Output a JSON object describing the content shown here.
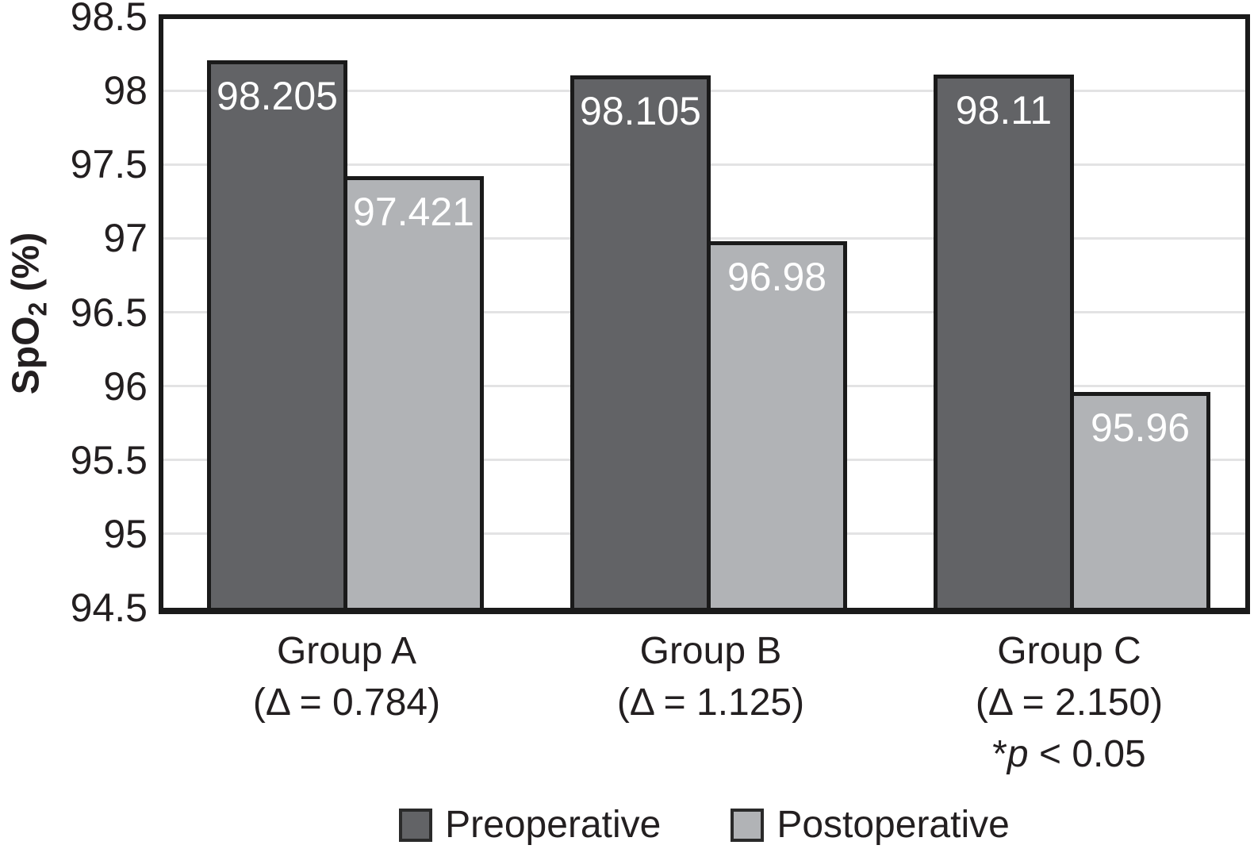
{
  "chart_data": {
    "type": "bar",
    "title": "",
    "ylabel": {
      "main": "SpO",
      "sub": "2",
      "rest": " (%)"
    },
    "ylim": [
      94.5,
      98.5
    ],
    "ytick_step": 0.5,
    "yticks": [
      {
        "value": 98.5,
        "label": "98.5"
      },
      {
        "value": 98,
        "label": "98"
      },
      {
        "value": 97.5,
        "label": "97.5"
      },
      {
        "value": 97,
        "label": "97"
      },
      {
        "value": 96.5,
        "label": "96.5"
      },
      {
        "value": 96,
        "label": "96"
      },
      {
        "value": 95.5,
        "label": "95.5"
      },
      {
        "value": 95,
        "label": "95"
      },
      {
        "value": 94.5,
        "label": "94.5"
      }
    ],
    "grid": true,
    "legend_position": "bottom",
    "categories": [
      {
        "title": "Group A",
        "delta": "(Δ = 0.784)",
        "significance": null
      },
      {
        "title": "Group B",
        "delta": "(Δ = 1.125)",
        "significance": null
      },
      {
        "title": "Group C",
        "delta": "(Δ = 2.150)",
        "significance": {
          "star": "*",
          "p": "p",
          "rest": " < 0.05"
        }
      }
    ],
    "series": [
      {
        "name": "Preoperative",
        "color": "#626366",
        "values": [
          98.205,
          98.105,
          98.11
        ],
        "value_labels": [
          "98.205",
          "98.105",
          "98.11"
        ]
      },
      {
        "name": "Postoperative",
        "color": "#b1b3b6",
        "values": [
          97.421,
          96.98,
          95.96
        ],
        "value_labels": [
          "97.421",
          "96.98",
          "95.96"
        ]
      }
    ],
    "colors": {
      "text": "#231f20",
      "grid": "#e3e3e4",
      "bar_border": "#1a1a1a",
      "background": "#ffffff"
    }
  }
}
